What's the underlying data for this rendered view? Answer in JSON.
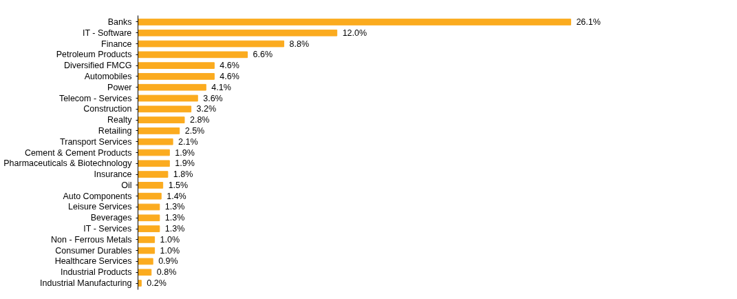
{
  "chart_data": {
    "type": "bar",
    "orientation": "horizontal",
    "tick_labels": "y",
    "categories": [
      "Banks",
      "IT - Software",
      "Finance",
      "Petroleum Products",
      "Diversified FMCG",
      "Automobiles",
      "Power",
      "Telecom - Services",
      "Construction",
      "Realty",
      "Retailing",
      "Transport Services",
      "Cement & Cement Products",
      "Pharmaceuticals & Biotechnology",
      "Insurance",
      "Oil",
      "Auto Components",
      "Leisure Services",
      "Beverages",
      "IT - Services",
      "Non - Ferrous Metals",
      "Consumer Durables",
      "Healthcare Services",
      "Industrial Products",
      "Industrial Manufacturing"
    ],
    "values": [
      26.1,
      12.0,
      8.8,
      6.6,
      4.6,
      4.6,
      4.1,
      3.6,
      3.2,
      2.8,
      2.5,
      2.1,
      1.9,
      1.9,
      1.8,
      1.5,
      1.4,
      1.3,
      1.3,
      1.3,
      1.0,
      1.0,
      0.9,
      0.8,
      0.2
    ],
    "value_labels": [
      "26.1%",
      "12.0%",
      "8.8%",
      "6.6%",
      "4.6%",
      "4.6%",
      "4.1%",
      "3.6%",
      "3.2%",
      "2.8%",
      "2.5%",
      "2.1%",
      "1.9%",
      "1.9%",
      "1.8%",
      "1.5%",
      "1.4%",
      "1.3%",
      "1.3%",
      "1.3%",
      "1.0%",
      "1.0%",
      "0.9%",
      "0.8%",
      "0.2%"
    ],
    "color": "#fbab1f"
  }
}
